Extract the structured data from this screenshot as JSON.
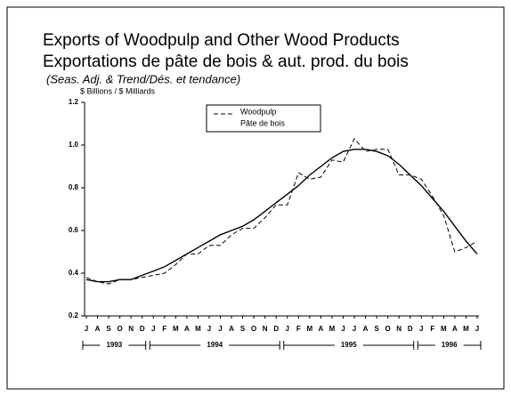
{
  "chart_data": {
    "type": "line",
    "title": "Exports of Woodpulp and Other Wood Products",
    "title_fr": "Exportations de pâte de bois & aut. prod. du bois",
    "subtitle": "(Seas. Adj. & Trend/Dés. et tendance)",
    "y_label": "$ Billions / $ Milliards",
    "categories": [
      "J",
      "A",
      "S",
      "O",
      "N",
      "D",
      "J",
      "F",
      "M",
      "A",
      "M",
      "J",
      "J",
      "A",
      "S",
      "O",
      "N",
      "D",
      "J",
      "F",
      "M",
      "A",
      "M",
      "J",
      "J",
      "A",
      "S",
      "O",
      "N",
      "D",
      "J",
      "F",
      "M",
      "A",
      "M",
      "J"
    ],
    "years": [
      "1993",
      "1994",
      "1995",
      "1996"
    ],
    "series": [
      {
        "name": "Woodpulp",
        "name_fr": "Pâte de bois",
        "color": "#000",
        "dash": true,
        "values": [
          0.38,
          0.36,
          0.35,
          0.37,
          0.37,
          0.38,
          0.39,
          0.4,
          0.44,
          0.49,
          0.49,
          0.53,
          0.53,
          0.58,
          0.61,
          0.61,
          0.66,
          0.72,
          0.72,
          0.87,
          0.84,
          0.85,
          0.93,
          0.92,
          1.03,
          0.97,
          0.98,
          0.98,
          0.86,
          0.86,
          0.84,
          0.76,
          0.67,
          0.5,
          0.52,
          0.55
        ]
      },
      {
        "color": "#000",
        "dash": false,
        "values": [
          0.37,
          0.36,
          0.36,
          0.37,
          0.37,
          0.39,
          0.41,
          0.43,
          0.46,
          0.49,
          0.52,
          0.55,
          0.58,
          0.6,
          0.62,
          0.65,
          0.69,
          0.73,
          0.77,
          0.81,
          0.86,
          0.9,
          0.94,
          0.97,
          0.98,
          0.98,
          0.97,
          0.95,
          0.91,
          0.86,
          0.81,
          0.75,
          0.69,
          0.62,
          0.55,
          0.49
        ]
      }
    ],
    "ylim": [
      0.2,
      1.2
    ],
    "yticks": [
      0.2,
      0.4,
      0.6,
      0.8,
      {
        "value": 1,
        "label": "1.0"
      },
      1.2
    ]
  }
}
